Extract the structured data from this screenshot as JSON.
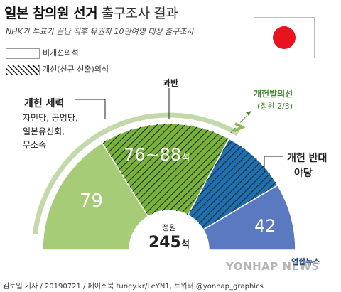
{
  "header": {
    "title_main": "일본 참의원 선거",
    "title_sub": "출구조사 결과",
    "subtitle": "NHK가 투표가 끝난 직후 유권자 10만여명 대상 출구조사"
  },
  "legend": {
    "non_reform": "비개선의석",
    "reform": "개선(신규 선출)의석"
  },
  "labels": {
    "majority": "과반",
    "amendment_line": "개헌발의선",
    "amendment_detail": "(정원 2/3)",
    "pro_group_title": "개헌 세력",
    "pro_group_members": [
      "자민당, 공명당,",
      "일본유신회,",
      "무소속"
    ],
    "anti_group_line1": "개헌 반대",
    "anti_group_line2": "야당",
    "center_caption": "정원",
    "center_value": "245",
    "center_unit": "석"
  },
  "chart_data": {
    "type": "semicircle",
    "total_seats": 245,
    "segments": [
      {
        "key": "pro_non_reform",
        "label": "79",
        "value": 79,
        "color": "#a6cc78",
        "hatched": false
      },
      {
        "key": "pro_reform",
        "label": "76~88",
        "unit": "석",
        "value": 82,
        "color": "#78b13c",
        "hatched": true
      },
      {
        "key": "anti_reform",
        "label": "",
        "value": 42,
        "color": "#1f6fb5",
        "hatched": true
      },
      {
        "key": "anti_non_reform",
        "label": "42",
        "value": 42,
        "color": "#5b79c0",
        "hatched": false
      }
    ],
    "markers": [
      {
        "key": "majority",
        "value": 123
      },
      {
        "key": "two_thirds",
        "value": 164
      }
    ]
  },
  "footer": {
    "credit": "김토일 기자 / 20190721 / 페이스북 tuney.kr/LeYN1, 트위터 @yonhap_graphics"
  },
  "watermark": "YONHAP NEWS",
  "agency": "연합뉴스"
}
